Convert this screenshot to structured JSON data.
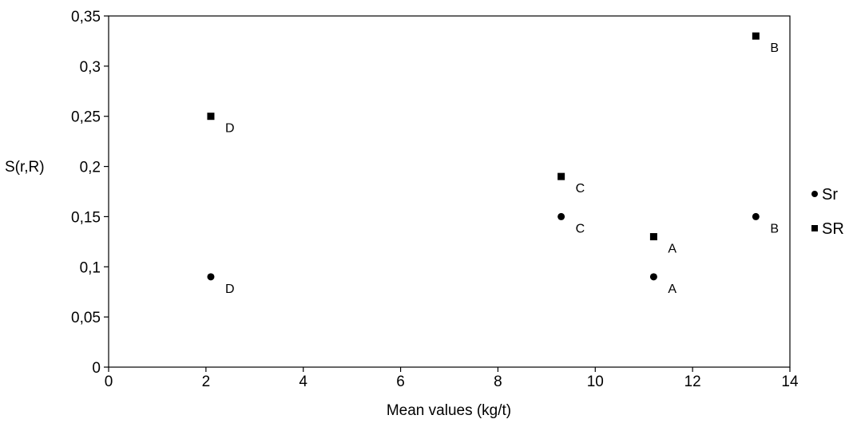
{
  "chart_data": {
    "type": "scatter",
    "xlabel": "Mean values (kg/t)",
    "ylabel": "S(r,R)",
    "xlim": [
      0,
      14
    ],
    "ylim": [
      0,
      0.35
    ],
    "x_ticks": [
      0,
      2,
      4,
      6,
      8,
      10,
      12,
      14
    ],
    "y_ticks": [
      0,
      0.05,
      0.1,
      0.15,
      0.2,
      0.25,
      0.3,
      0.35
    ],
    "x_tick_labels": [
      "0",
      "2",
      "4",
      "6",
      "8",
      "10",
      "12",
      "14"
    ],
    "y_tick_labels": [
      "0",
      "0,05",
      "0,1",
      "0,15",
      "0,2",
      "0,25",
      "0,3",
      "0,35"
    ],
    "grid": false,
    "legend_position": "right",
    "series": [
      {
        "name": "Sr",
        "marker": "circle",
        "color": "#000000",
        "points": [
          {
            "x": 2.1,
            "y": 0.09,
            "label": "D"
          },
          {
            "x": 9.3,
            "y": 0.15,
            "label": "C"
          },
          {
            "x": 11.2,
            "y": 0.09,
            "label": "A"
          },
          {
            "x": 13.3,
            "y": 0.15,
            "label": "B"
          }
        ]
      },
      {
        "name": "SR",
        "marker": "square",
        "color": "#000000",
        "points": [
          {
            "x": 2.1,
            "y": 0.25,
            "label": "D"
          },
          {
            "x": 9.3,
            "y": 0.19,
            "label": "C"
          },
          {
            "x": 11.2,
            "y": 0.13,
            "label": "A"
          },
          {
            "x": 13.3,
            "y": 0.33,
            "label": "B"
          }
        ]
      }
    ]
  }
}
